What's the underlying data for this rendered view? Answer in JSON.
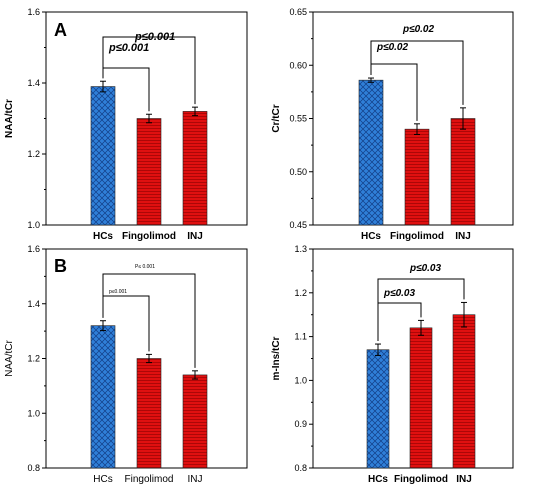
{
  "colors": {
    "hc_blue": "#2f7fd8",
    "ms_red": "#e01010"
  },
  "chart_data": [
    {
      "type": "bar",
      "panel": "A",
      "categories": [
        "HCs",
        "Fingolimod",
        "INJ"
      ],
      "values": [
        1.39,
        1.3,
        1.32
      ],
      "errors": [
        0.015,
        0.012,
        0.012
      ],
      "ylabel": "NAA/tCr",
      "ylim": [
        1.0,
        1.6
      ],
      "yticks": [
        "1.0",
        "1.2",
        "1.4",
        "1.6"
      ],
      "annotations": [
        {
          "text": "p≤0.001",
          "from": 0,
          "to": 1
        },
        {
          "text": "p≤0.001",
          "from": 0,
          "to": 2
        }
      ],
      "bold": true,
      "grid": false
    },
    {
      "type": "bar",
      "panel": "",
      "categories": [
        "HCs",
        "Fingolimod",
        "INJ"
      ],
      "values": [
        0.586,
        0.54,
        0.55
      ],
      "errors": [
        0.002,
        0.005,
        0.01
      ],
      "ylabel": "Cr/tCr",
      "ylim": [
        0.45,
        0.65
      ],
      "yticks": [
        "0.45",
        "0.50",
        "0.55",
        "0.60",
        "0.65"
      ],
      "annotations": [
        {
          "text": "p≤0.02",
          "from": 0,
          "to": 1
        },
        {
          "text": "p≤0.02",
          "from": 0,
          "to": 2
        }
      ],
      "bold": true,
      "grid": false
    },
    {
      "type": "bar",
      "panel": "B",
      "categories": [
        "HCs",
        "Fingolimod",
        "INJ"
      ],
      "values": [
        1.32,
        1.2,
        1.14
      ],
      "errors": [
        0.018,
        0.015,
        0.015
      ],
      "ylabel": "NAA/tCr",
      "ylim": [
        0.8,
        1.6
      ],
      "yticks": [
        "0.8",
        "1.0",
        "1.2",
        "1.4",
        "1.6"
      ],
      "annotations": [
        {
          "text": "p≤0.001",
          "from": 0,
          "to": 1
        },
        {
          "text": "P≤ 0.001",
          "from": 0,
          "to": 2
        }
      ],
      "bold": false,
      "grid": false
    },
    {
      "type": "bar",
      "panel": "",
      "categories": [
        "HCs",
        "Fingolimod",
        "INJ"
      ],
      "values": [
        1.07,
        1.12,
        1.15
      ],
      "errors": [
        0.013,
        0.017,
        0.028
      ],
      "ylabel": "m-Ins/tCr",
      "ylim": [
        0.8,
        1.3
      ],
      "yticks": [
        "0.8",
        "0.9",
        "1.0",
        "1.1",
        "1.2",
        "1.3"
      ],
      "annotations": [
        {
          "text": "p≤0.03",
          "from": 0,
          "to": 1
        },
        {
          "text": "p≤0.03",
          "from": 0,
          "to": 2
        }
      ],
      "bold": true,
      "grid": false
    }
  ]
}
